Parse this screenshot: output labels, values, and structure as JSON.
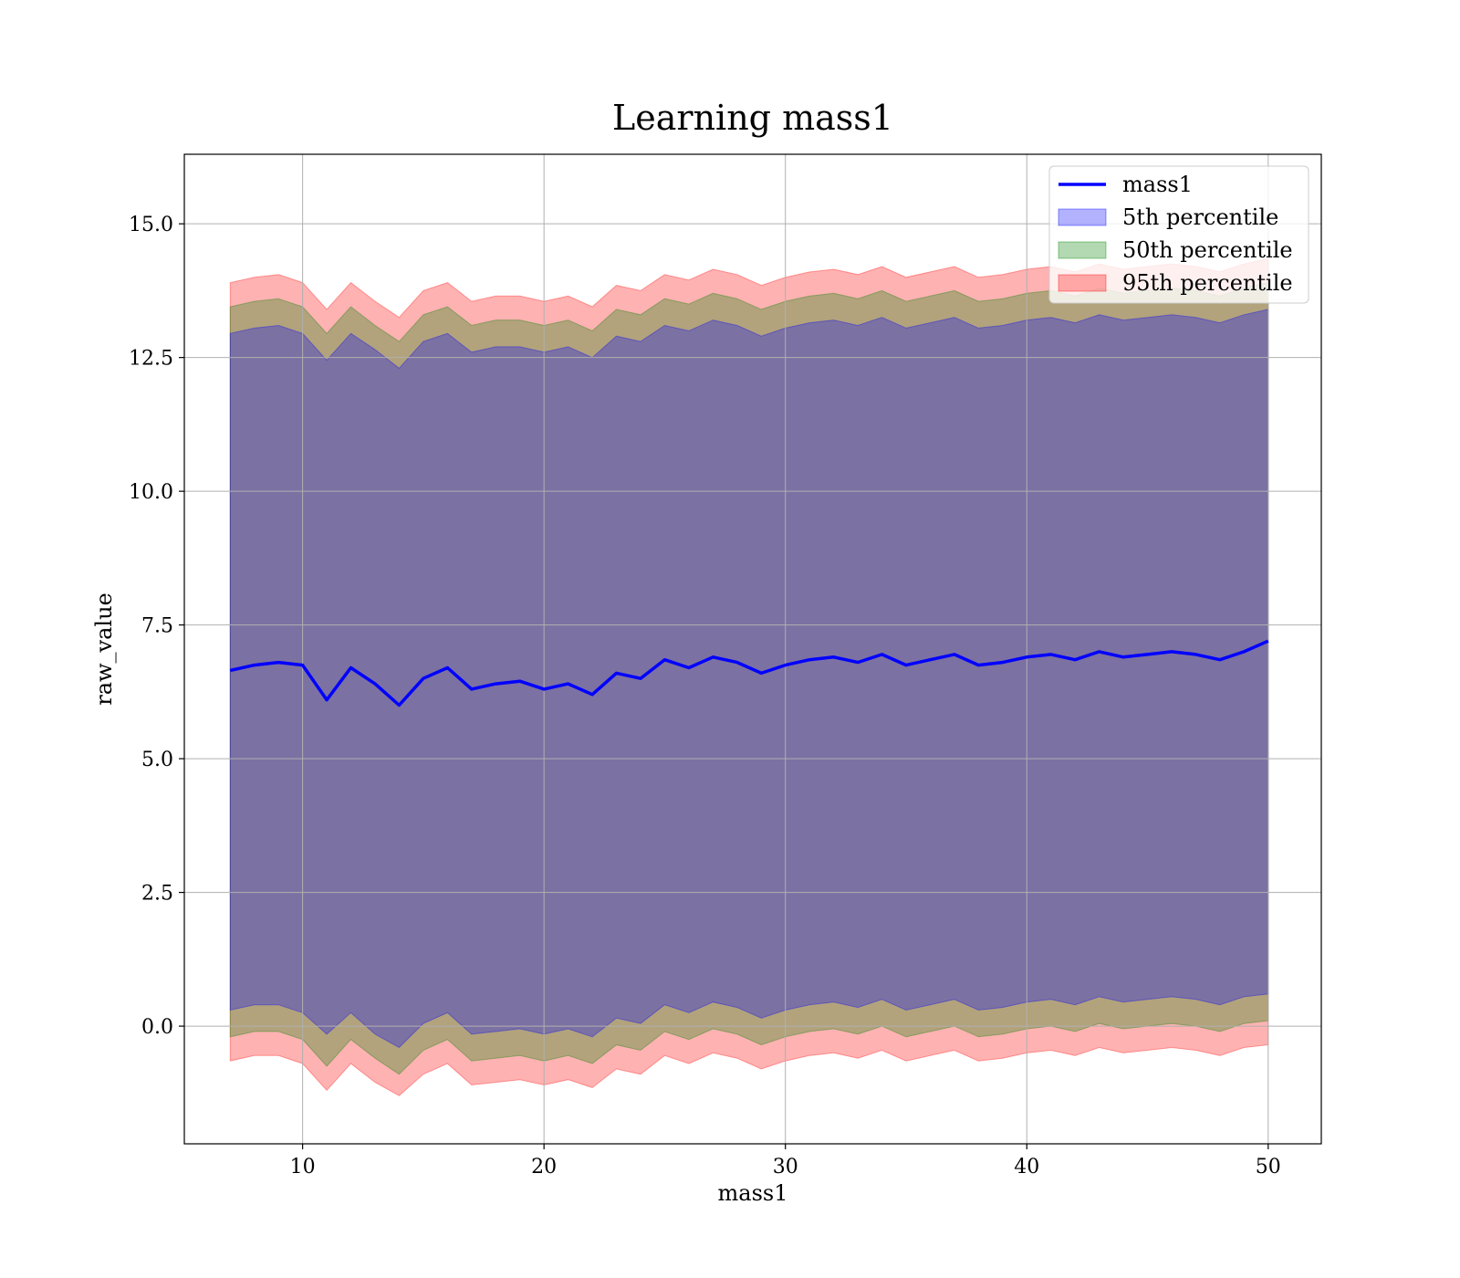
{
  "chart_data": {
    "type": "line",
    "title": "Learning mass1",
    "xlabel": "mass1",
    "ylabel": "raw_value",
    "xlim": [
      5.1,
      52.2
    ],
    "ylim": [
      -2.2,
      16.3
    ],
    "x_ticks": [
      10,
      20,
      30,
      40,
      50
    ],
    "y_ticks": [
      0.0,
      2.5,
      5.0,
      7.5,
      10.0,
      12.5,
      15.0
    ],
    "x_tick_labels": [
      "10",
      "20",
      "30",
      "40",
      "50"
    ],
    "y_tick_labels": [
      "0.0",
      "2.5",
      "5.0",
      "7.5",
      "10.0",
      "12.5",
      "15.0"
    ],
    "grid": true,
    "legend_position": "top-right",
    "x": [
      7,
      8,
      9,
      10,
      11,
      12,
      13,
      14,
      15,
      16,
      17,
      18,
      19,
      20,
      21,
      22,
      23,
      24,
      25,
      26,
      27,
      28,
      29,
      30,
      31,
      32,
      33,
      34,
      35,
      36,
      37,
      38,
      39,
      40,
      41,
      42,
      43,
      44,
      45,
      46,
      47,
      48,
      49,
      50
    ],
    "series": [
      {
        "name": "mass1",
        "style": "line",
        "color": "#0000ff",
        "values": [
          6.65,
          6.75,
          6.8,
          6.75,
          6.1,
          6.7,
          6.4,
          6.0,
          6.5,
          6.7,
          6.3,
          6.4,
          6.45,
          6.3,
          6.4,
          6.2,
          6.6,
          6.5,
          6.85,
          6.7,
          6.9,
          6.8,
          6.6,
          6.75,
          6.85,
          6.9,
          6.8,
          6.95,
          6.75,
          6.85,
          6.95,
          6.75,
          6.8,
          6.9,
          6.95,
          6.85,
          7.0,
          6.9,
          6.95,
          7.0,
          6.95,
          6.85,
          7.0,
          7.2
        ]
      },
      {
        "name": "5th percentile",
        "style": "band",
        "color": "#0000ff",
        "lower": [
          0.3,
          0.4,
          0.4,
          0.25,
          -0.15,
          0.25,
          -0.15,
          -0.4,
          0.05,
          0.25,
          -0.15,
          -0.1,
          -0.05,
          -0.15,
          -0.05,
          -0.2,
          0.15,
          0.05,
          0.4,
          0.25,
          0.45,
          0.35,
          0.15,
          0.3,
          0.4,
          0.45,
          0.35,
          0.5,
          0.3,
          0.4,
          0.5,
          0.3,
          0.35,
          0.45,
          0.5,
          0.4,
          0.55,
          0.45,
          0.5,
          0.55,
          0.5,
          0.4,
          0.55,
          0.6
        ],
        "upper": [
          12.95,
          13.05,
          13.1,
          12.95,
          12.45,
          12.95,
          12.65,
          12.3,
          12.8,
          12.95,
          12.6,
          12.7,
          12.7,
          12.6,
          12.7,
          12.5,
          12.9,
          12.8,
          13.1,
          13.0,
          13.2,
          13.1,
          12.9,
          13.05,
          13.15,
          13.2,
          13.1,
          13.25,
          13.05,
          13.15,
          13.25,
          13.05,
          13.1,
          13.2,
          13.25,
          13.15,
          13.3,
          13.2,
          13.25,
          13.3,
          13.25,
          13.15,
          13.3,
          13.4
        ]
      },
      {
        "name": "50th percentile",
        "style": "band",
        "color": "#008000",
        "lower": [
          -0.2,
          -0.1,
          -0.1,
          -0.25,
          -0.75,
          -0.25,
          -0.6,
          -0.9,
          -0.45,
          -0.25,
          -0.65,
          -0.6,
          -0.55,
          -0.65,
          -0.55,
          -0.7,
          -0.35,
          -0.45,
          -0.1,
          -0.25,
          -0.05,
          -0.15,
          -0.35,
          -0.2,
          -0.1,
          -0.05,
          -0.15,
          0.0,
          -0.2,
          -0.1,
          0.0,
          -0.2,
          -0.15,
          -0.05,
          0.0,
          -0.1,
          0.05,
          -0.05,
          0.0,
          0.05,
          0.0,
          -0.1,
          0.05,
          0.1
        ],
        "upper": [
          13.45,
          13.55,
          13.6,
          13.45,
          12.95,
          13.45,
          13.1,
          12.8,
          13.3,
          13.45,
          13.1,
          13.2,
          13.2,
          13.1,
          13.2,
          13.0,
          13.4,
          13.3,
          13.6,
          13.5,
          13.7,
          13.6,
          13.4,
          13.55,
          13.65,
          13.7,
          13.6,
          13.75,
          13.55,
          13.65,
          13.75,
          13.55,
          13.6,
          13.7,
          13.75,
          13.65,
          13.8,
          13.7,
          13.75,
          13.8,
          13.75,
          13.65,
          13.8,
          13.9
        ]
      },
      {
        "name": "95th percentile",
        "style": "band",
        "color": "#ff0000",
        "lower": [
          -0.65,
          -0.55,
          -0.55,
          -0.7,
          -1.2,
          -0.7,
          -1.05,
          -1.3,
          -0.9,
          -0.7,
          -1.1,
          -1.05,
          -1.0,
          -1.1,
          -1.0,
          -1.15,
          -0.8,
          -0.9,
          -0.55,
          -0.7,
          -0.5,
          -0.6,
          -0.8,
          -0.65,
          -0.55,
          -0.5,
          -0.6,
          -0.45,
          -0.65,
          -0.55,
          -0.45,
          -0.65,
          -0.6,
          -0.5,
          -0.45,
          -0.55,
          -0.4,
          -0.5,
          -0.45,
          -0.4,
          -0.45,
          -0.55,
          -0.4,
          -0.35
        ],
        "upper": [
          13.9,
          14.0,
          14.05,
          13.9,
          13.4,
          13.9,
          13.55,
          13.25,
          13.75,
          13.9,
          13.55,
          13.65,
          13.65,
          13.55,
          13.65,
          13.45,
          13.85,
          13.75,
          14.05,
          13.95,
          14.15,
          14.05,
          13.85,
          14.0,
          14.1,
          14.15,
          14.05,
          14.2,
          14.0,
          14.1,
          14.2,
          14.0,
          14.05,
          14.15,
          14.2,
          14.1,
          14.25,
          14.15,
          14.2,
          14.25,
          14.2,
          14.1,
          14.25,
          14.35
        ]
      }
    ]
  }
}
